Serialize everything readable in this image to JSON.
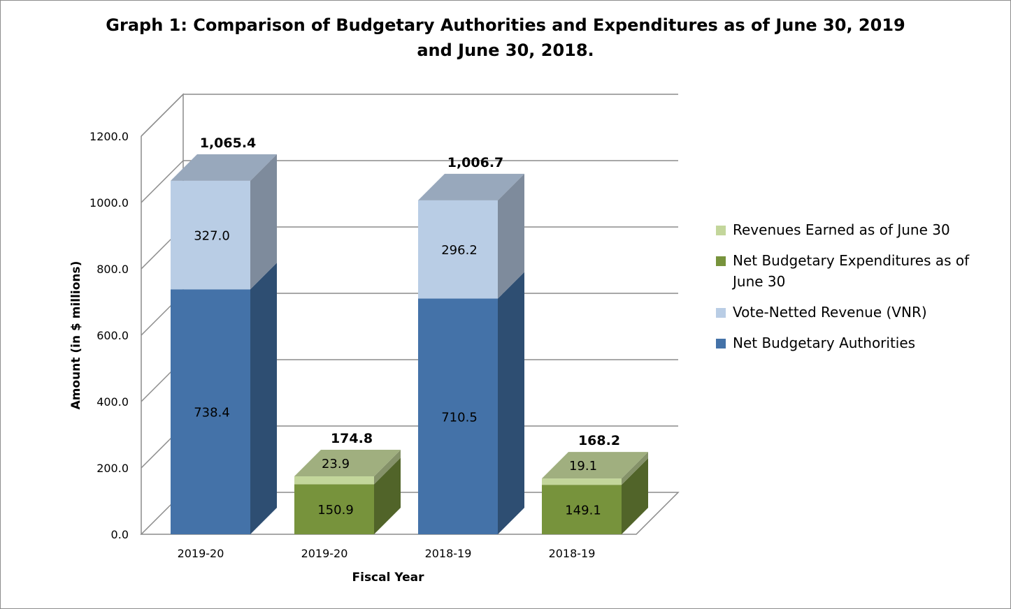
{
  "chart_data": {
    "type": "bar",
    "stacked": true,
    "three_d": true,
    "title": "Graph 1: Comparison of Budgetary Authorities and Expenditures as of June 30, 2019 and June 30, 2018.",
    "xlabel": "Fiscal Year",
    "ylabel": "Amount (in $ millions)",
    "ylim": [
      0,
      1200
    ],
    "yticks": [
      "0.0",
      "200.0",
      "400.0",
      "600.0",
      "800.0",
      "1000.0",
      "1200.0"
    ],
    "grid": true,
    "legend_position": "right",
    "categories": [
      "2019-20",
      "2019-20",
      "2018-19",
      "2018-19"
    ],
    "series": [
      {
        "name": "Net Budgetary Authorities",
        "color": "#4472a8",
        "values": [
          738.4,
          null,
          710.5,
          null
        ],
        "labels": [
          "738.4",
          "",
          "710.5",
          ""
        ]
      },
      {
        "name": "Vote-Netted Revenue (VNR)",
        "color": "#b9cde5",
        "values": [
          327.0,
          null,
          296.2,
          null
        ],
        "labels": [
          "327.0",
          "",
          "296.2",
          ""
        ]
      },
      {
        "name": "Net Budgetary Expenditures as of June 30",
        "color": "#77933c",
        "values": [
          null,
          150.9,
          null,
          149.1
        ],
        "labels": [
          "",
          "150.9",
          "",
          "149.1"
        ]
      },
      {
        "name": "Revenues Earned as of June 30",
        "color": "#c3d69b",
        "values": [
          null,
          23.9,
          null,
          19.1
        ],
        "labels": [
          "",
          "23.9",
          "",
          "19.1"
        ]
      }
    ],
    "totals": [
      1065.4,
      174.8,
      1006.7,
      168.2
    ],
    "total_labels": [
      "1,065.4",
      "174.8",
      "1,006.7",
      "168.2"
    ],
    "legend_order": [
      "Revenues Earned as of June 30",
      "Net Budgetary Expenditures as of June 30",
      "Vote-Netted Revenue (VNR)",
      "Net Budgetary Authorities"
    ]
  }
}
